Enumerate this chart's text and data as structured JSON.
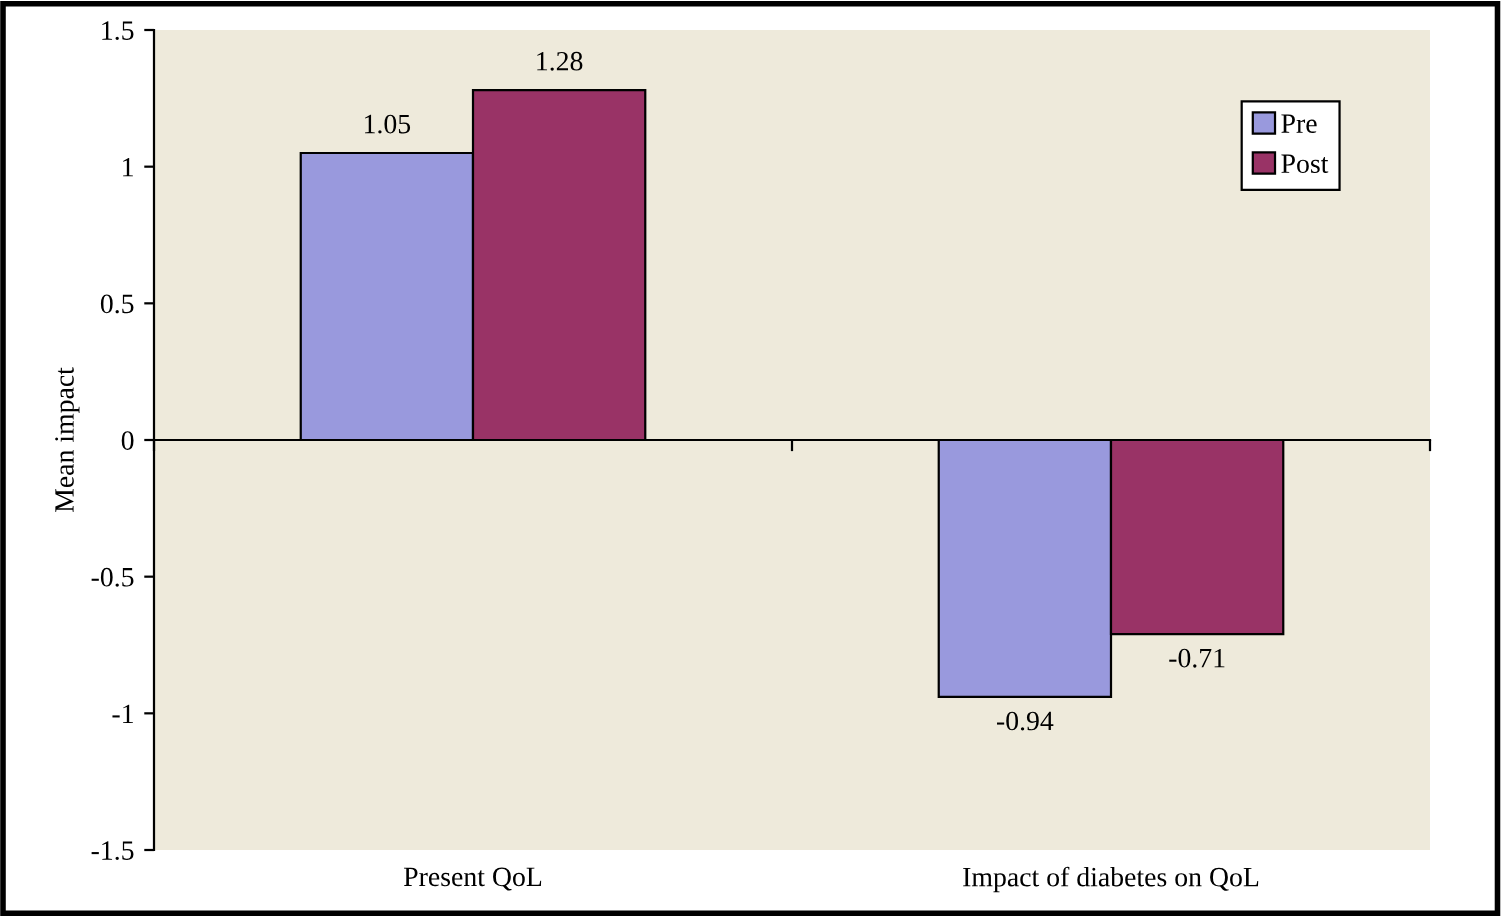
{
  "chart_data": {
    "type": "bar",
    "ylabel": "Mean impact",
    "categories": [
      "Present QoL",
      "Impact of diabetes on QoL"
    ],
    "series": [
      {
        "name": "Pre",
        "color": "#9999dd",
        "values": [
          1.05,
          -0.94
        ]
      },
      {
        "name": "Post",
        "color": "#993366",
        "values": [
          1.28,
          -0.71
        ]
      }
    ],
    "ylim": [
      -1.5,
      1.5
    ],
    "yticks": [
      {
        "value": -1.5,
        "label": "-1.5"
      },
      {
        "value": -1,
        "label": "-1"
      },
      {
        "value": -0.5,
        "label": "-0.5"
      },
      0,
      0.5,
      1,
      1.5
    ],
    "data_labels": true,
    "legend": "top right"
  }
}
